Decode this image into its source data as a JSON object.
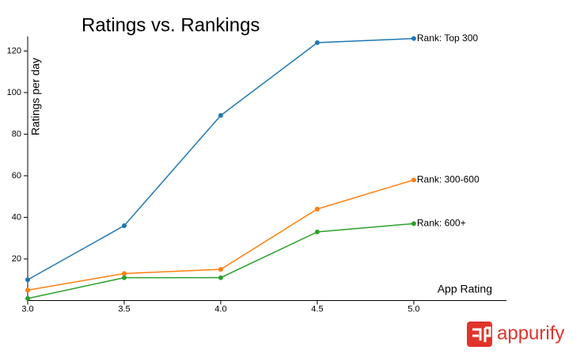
{
  "chart_data": {
    "type": "line",
    "title": "Ratings vs. Rankings",
    "x_label": "App Rating",
    "y_label": "Ratings per day",
    "x": [
      3,
      3.5,
      4,
      4.5,
      5
    ],
    "series": [
      {
        "name": "Rank: Top 300",
        "color": "#1f77b4",
        "values": [
          10,
          36,
          89,
          124,
          126
        ]
      },
      {
        "name": "Rank: 300-600",
        "color": "#ff7f0e",
        "values": [
          5,
          13,
          15,
          44,
          58
        ]
      },
      {
        "name": "Rank: 600+",
        "color": "#2ca02c",
        "values": [
          1,
          11,
          11,
          33,
          37
        ]
      }
    ],
    "xlim": [
      3,
      5.48
    ],
    "ylim": [
      0,
      127
    ],
    "xticks": [
      {
        "value": 3,
        "label": "3.0"
      },
      {
        "value": 3.5,
        "label": "3.5"
      },
      {
        "value": 4,
        "label": "4.0"
      },
      {
        "value": 4.5,
        "label": "4.5"
      },
      {
        "value": 5,
        "label": "5.0"
      }
    ],
    "yticks": [
      20,
      40,
      60,
      80,
      100,
      120
    ],
    "grid": false
  },
  "logo": {
    "text": "appurify"
  }
}
